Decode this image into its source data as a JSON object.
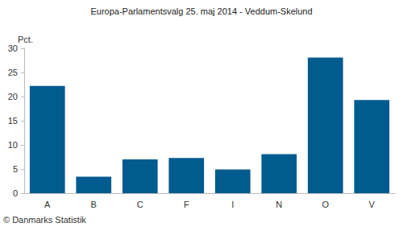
{
  "chart_data": {
    "type": "bar",
    "title": "Europa-Parlamentsvalg 25. maj 2014 - Veddum-Skelund",
    "ylabel": "Pct.",
    "annotations": [
      "© Danmarks Statistik"
    ],
    "categories": [
      "A",
      "B",
      "C",
      "F",
      "I",
      "N",
      "O",
      "V"
    ],
    "values": [
      22.2,
      3.4,
      7.0,
      7.3,
      4.9,
      8.1,
      28.1,
      19.3
    ],
    "color": "#005b8e",
    "ylim": [
      0,
      30
    ],
    "yticks": [
      0,
      5,
      10,
      15,
      20,
      25,
      30
    ],
    "grid": false
  }
}
